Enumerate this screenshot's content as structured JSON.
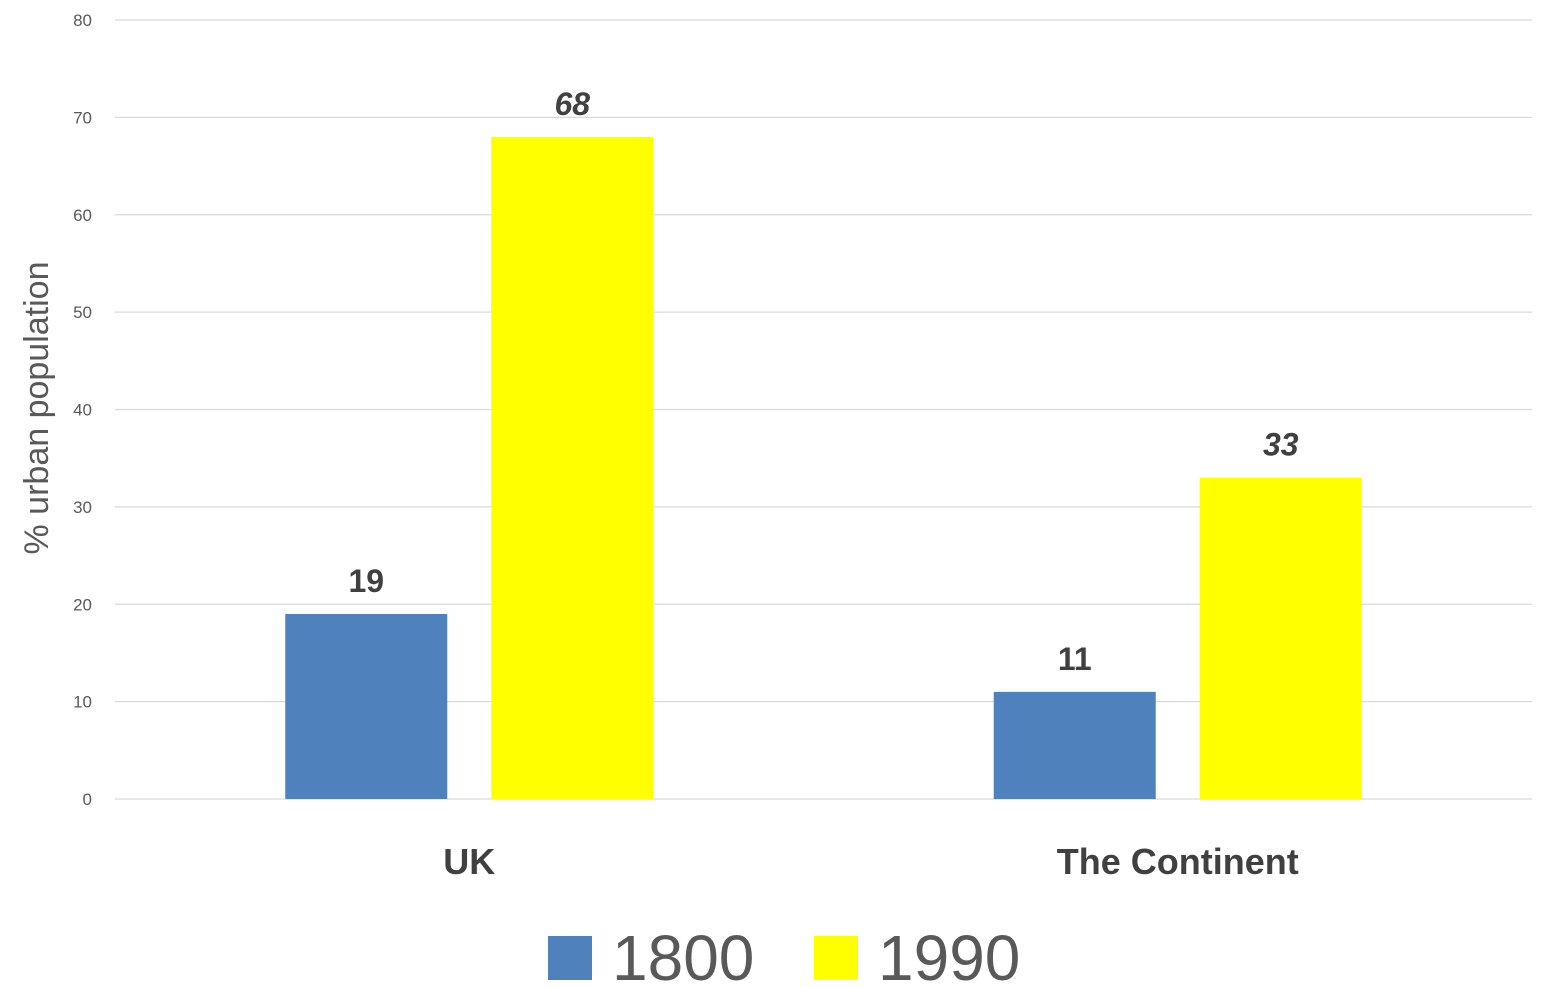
{
  "chart_data": {
    "type": "bar",
    "categories": [
      "UK",
      "The Continent"
    ],
    "series": [
      {
        "name": "1800",
        "values": [
          19,
          11
        ],
        "color": "#4F81BD",
        "label_style": "bold"
      },
      {
        "name": "1990",
        "values": [
          68,
          33
        ],
        "color": "#FFFF00",
        "label_style": "bold-italic"
      }
    ],
    "ylabel": "% urban population",
    "xlabel": "",
    "ylim": [
      0,
      80
    ],
    "yticks": [
      0,
      10,
      20,
      30,
      40,
      50,
      60,
      70,
      80
    ],
    "grid": true,
    "legend_position": "bottom"
  }
}
